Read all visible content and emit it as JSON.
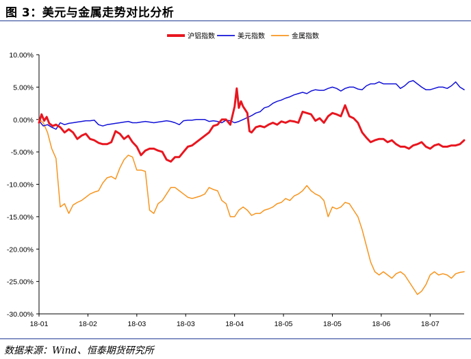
{
  "figure": {
    "title": "图 3：美元与金属走势对比分析",
    "source": "数据来源：Wind、恒泰期货研究所"
  },
  "chart_data": {
    "type": "line",
    "title": "",
    "xlabel": "",
    "ylabel": "",
    "ylim": [
      -0.3,
      0.1
    ],
    "y_ticks": [
      0.1,
      0.05,
      0.0,
      -0.05,
      -0.1,
      -0.15,
      -0.2,
      -0.25,
      -0.3
    ],
    "y_tick_labels": [
      "10.00%",
      "5.00%",
      "0.00%",
      "-5.00%",
      "-10.00%",
      "-15.00%",
      "-20.00%",
      "-25.00%",
      "-30.00%"
    ],
    "x_range": [
      0,
      100
    ],
    "x_ticks": [
      0,
      11.5,
      23,
      34.5,
      46,
      57.5,
      69,
      80.5,
      92
    ],
    "x_tick_labels": [
      "18-01",
      "18-02",
      "18-03",
      "18-03",
      "18-04",
      "18-05",
      "18-05",
      "18-06",
      "18-07"
    ],
    "grid": false,
    "legend": "top-center",
    "series": [
      {
        "name": "沪铝指数",
        "color": "#e8161f",
        "width": 3,
        "x": [
          0,
          0.6,
          1.2,
          1.8,
          2.4,
          3.2,
          4,
          5,
          6,
          7,
          8,
          9,
          10,
          11,
          12,
          13,
          14,
          15,
          16,
          17,
          18,
          19,
          20,
          21,
          22,
          23,
          24,
          25,
          26,
          27,
          28,
          29,
          30,
          31,
          32,
          33,
          34,
          35,
          36,
          37,
          38,
          39,
          40,
          41,
          42,
          43,
          44,
          45,
          46,
          46.5,
          47,
          47.5,
          48,
          48.5,
          49,
          49.5,
          50,
          51,
          52,
          53,
          54,
          55,
          56,
          57,
          58,
          59,
          60,
          61,
          62,
          63,
          64,
          65,
          66,
          67,
          68,
          69,
          70,
          71,
          72,
          73,
          74,
          75,
          76,
          77,
          78,
          79,
          80,
          81,
          82,
          83,
          84,
          85,
          86,
          87,
          88,
          89,
          90,
          91,
          92,
          93,
          94,
          95,
          96,
          97,
          98,
          99,
          100
        ],
        "y": [
          -0.005,
          0.008,
          -0.002,
          0.004,
          -0.006,
          -0.01,
          -0.008,
          -0.012,
          -0.02,
          -0.015,
          -0.02,
          -0.03,
          -0.025,
          -0.022,
          -0.03,
          -0.032,
          -0.036,
          -0.038,
          -0.038,
          -0.035,
          -0.018,
          -0.022,
          -0.03,
          -0.025,
          -0.035,
          -0.042,
          -0.055,
          -0.048,
          -0.045,
          -0.045,
          -0.048,
          -0.05,
          -0.062,
          -0.065,
          -0.058,
          -0.058,
          -0.05,
          -0.042,
          -0.04,
          -0.035,
          -0.03,
          -0.025,
          -0.02,
          -0.01,
          -0.008,
          0.0,
          0.0,
          -0.008,
          0.02,
          0.048,
          0.018,
          0.028,
          0.02,
          0.015,
          0.01,
          -0.018,
          -0.02,
          -0.012,
          -0.01,
          -0.012,
          -0.008,
          -0.005,
          -0.008,
          -0.003,
          -0.005,
          -0.002,
          -0.003,
          -0.005,
          0.012,
          0.01,
          0.008,
          -0.002,
          0.002,
          -0.005,
          0.005,
          0.01,
          0.008,
          0.005,
          0.022,
          0.005,
          0.002,
          -0.005,
          -0.02,
          -0.028,
          -0.035,
          -0.032,
          -0.03,
          -0.03,
          -0.035,
          -0.032,
          -0.038,
          -0.042,
          -0.042,
          -0.045,
          -0.04,
          -0.038,
          -0.035,
          -0.042,
          -0.045,
          -0.04,
          -0.038,
          -0.042,
          -0.042,
          -0.04,
          -0.04,
          -0.038,
          -0.032
        ]
      },
      {
        "name": "美元指数",
        "color": "#1010d8",
        "width": 1.5,
        "x": [
          0,
          1,
          2,
          3,
          4,
          5,
          6,
          7,
          8,
          9,
          10,
          11,
          12,
          13,
          14,
          15,
          16,
          17,
          18,
          19,
          20,
          21,
          22,
          23,
          24,
          25,
          26,
          27,
          28,
          29,
          30,
          31,
          32,
          33,
          34,
          35,
          36,
          37,
          38,
          39,
          40,
          41,
          42,
          43,
          44,
          45,
          46,
          47,
          48,
          49,
          50,
          51,
          52,
          53,
          54,
          55,
          56,
          57,
          58,
          59,
          60,
          61,
          62,
          63,
          64,
          65,
          66,
          67,
          68,
          69,
          70,
          71,
          72,
          73,
          74,
          75,
          76,
          77,
          78,
          79,
          80,
          81,
          82,
          83,
          84,
          85,
          86,
          87,
          88,
          89,
          90,
          91,
          92,
          93,
          94,
          95,
          96,
          97,
          98,
          99,
          100
        ],
        "y": [
          -0.002,
          -0.01,
          -0.008,
          -0.012,
          -0.015,
          -0.005,
          -0.008,
          -0.006,
          -0.005,
          -0.004,
          -0.003,
          -0.002,
          -0.002,
          -0.001,
          -0.008,
          -0.01,
          -0.008,
          -0.007,
          -0.006,
          -0.005,
          -0.004,
          -0.003,
          -0.005,
          -0.005,
          -0.004,
          -0.003,
          -0.004,
          -0.005,
          -0.004,
          -0.003,
          -0.002,
          -0.003,
          -0.005,
          -0.008,
          -0.002,
          -0.001,
          -0.001,
          0.0,
          0.0,
          0.0,
          -0.003,
          -0.002,
          -0.003,
          -0.005,
          -0.001,
          -0.002,
          -0.005,
          -0.003,
          0.0,
          0.003,
          0.006,
          0.01,
          0.012,
          0.018,
          0.02,
          0.025,
          0.028,
          0.03,
          0.033,
          0.035,
          0.038,
          0.04,
          0.042,
          0.04,
          0.044,
          0.046,
          0.045,
          0.045,
          0.048,
          0.05,
          0.048,
          0.044,
          0.048,
          0.05,
          0.05,
          0.047,
          0.046,
          0.052,
          0.055,
          0.055,
          0.058,
          0.055,
          0.055,
          0.055,
          0.055,
          0.048,
          0.052,
          0.058,
          0.06,
          0.055,
          0.05,
          0.046,
          0.046,
          0.048,
          0.05,
          0.05,
          0.048,
          0.052,
          0.058,
          0.05,
          0.046
        ]
      },
      {
        "name": "金属指数",
        "color": "#f7941d",
        "width": 1.5,
        "x": [
          0,
          1,
          2,
          3,
          4,
          5,
          6,
          7,
          8,
          9,
          10,
          11,
          12,
          13,
          14,
          15,
          16,
          17,
          18,
          19,
          20,
          21,
          22,
          23,
          24,
          25,
          26,
          27,
          28,
          29,
          30,
          31,
          32,
          33,
          34,
          35,
          36,
          37,
          38,
          39,
          40,
          41,
          42,
          43,
          44,
          45,
          46,
          47,
          48,
          49,
          50,
          51,
          52,
          53,
          54,
          55,
          56,
          57,
          58,
          59,
          60,
          61,
          62,
          63,
          64,
          65,
          66,
          67,
          68,
          69,
          70,
          71,
          72,
          73,
          74,
          75,
          76,
          77,
          78,
          79,
          80,
          81,
          82,
          83,
          84,
          85,
          86,
          87,
          88,
          89,
          90,
          91,
          92,
          93,
          94,
          95,
          96,
          97,
          98,
          99,
          100
        ],
        "y": [
          0.0,
          -0.005,
          -0.02,
          -0.045,
          -0.06,
          -0.135,
          -0.13,
          -0.145,
          -0.132,
          -0.128,
          -0.125,
          -0.12,
          -0.115,
          -0.112,
          -0.11,
          -0.098,
          -0.09,
          -0.088,
          -0.092,
          -0.075,
          -0.062,
          -0.055,
          -0.058,
          -0.078,
          -0.078,
          -0.08,
          -0.14,
          -0.145,
          -0.13,
          -0.125,
          -0.115,
          -0.105,
          -0.105,
          -0.11,
          -0.115,
          -0.12,
          -0.122,
          -0.12,
          -0.118,
          -0.115,
          -0.105,
          -0.108,
          -0.11,
          -0.125,
          -0.13,
          -0.15,
          -0.15,
          -0.14,
          -0.135,
          -0.14,
          -0.148,
          -0.145,
          -0.145,
          -0.14,
          -0.138,
          -0.135,
          -0.13,
          -0.128,
          -0.122,
          -0.125,
          -0.118,
          -0.115,
          -0.11,
          -0.102,
          -0.11,
          -0.115,
          -0.118,
          -0.125,
          -0.15,
          -0.135,
          -0.138,
          -0.135,
          -0.128,
          -0.13,
          -0.14,
          -0.15,
          -0.17,
          -0.195,
          -0.22,
          -0.235,
          -0.24,
          -0.235,
          -0.24,
          -0.245,
          -0.238,
          -0.235,
          -0.24,
          -0.25,
          -0.26,
          -0.27,
          -0.265,
          -0.255,
          -0.24,
          -0.235,
          -0.24,
          -0.238,
          -0.24,
          -0.245,
          -0.238,
          -0.236,
          -0.235
        ]
      }
    ]
  }
}
